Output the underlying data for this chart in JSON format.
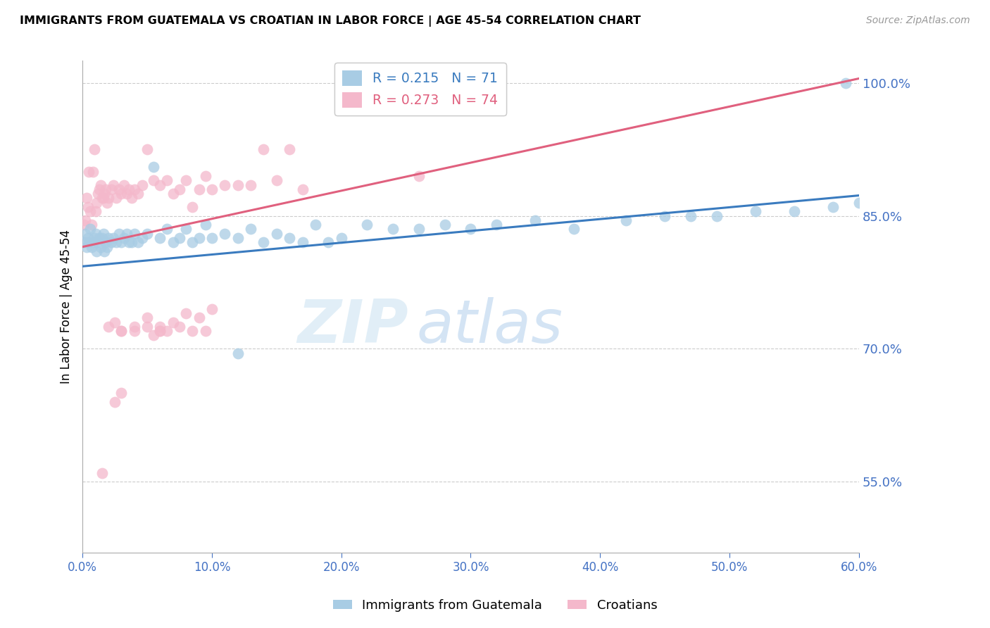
{
  "title": "IMMIGRANTS FROM GUATEMALA VS CROATIAN IN LABOR FORCE | AGE 45-54 CORRELATION CHART",
  "source": "Source: ZipAtlas.com",
  "ylabel": "In Labor Force | Age 45-54",
  "legend_labels": [
    "Immigrants from Guatemala",
    "Croatians"
  ],
  "blue_R": 0.215,
  "blue_N": 71,
  "pink_R": 0.273,
  "pink_N": 74,
  "blue_color": "#a8cce4",
  "pink_color": "#f4b8cb",
  "blue_line_color": "#3a7bbf",
  "pink_line_color": "#e0607e",
  "watermark_zip": "ZIP",
  "watermark_atlas": "atlas",
  "xmin": 0.0,
  "xmax": 0.6,
  "ymin": 0.47,
  "ymax": 1.025,
  "yticks": [
    0.55,
    0.7,
    0.85,
    1.0
  ],
  "xticks": [
    0.0,
    0.1,
    0.2,
    0.3,
    0.4,
    0.5,
    0.6
  ],
  "blue_line_x0": 0.0,
  "blue_line_y0": 0.793,
  "blue_line_x1": 0.6,
  "blue_line_y1": 0.873,
  "pink_line_x0": 0.0,
  "pink_line_y0": 0.815,
  "pink_line_x1": 0.6,
  "pink_line_y1": 1.005,
  "blue_scatter_x": [
    0.001,
    0.002,
    0.003,
    0.004,
    0.005,
    0.006,
    0.007,
    0.008,
    0.009,
    0.01,
    0.011,
    0.012,
    0.013,
    0.014,
    0.015,
    0.016,
    0.017,
    0.018,
    0.019,
    0.02,
    0.022,
    0.024,
    0.026,
    0.028,
    0.03,
    0.032,
    0.034,
    0.036,
    0.038,
    0.04,
    0.043,
    0.046,
    0.05,
    0.055,
    0.06,
    0.065,
    0.07,
    0.075,
    0.08,
    0.085,
    0.09,
    0.095,
    0.1,
    0.11,
    0.12,
    0.13,
    0.14,
    0.15,
    0.16,
    0.17,
    0.18,
    0.19,
    0.2,
    0.22,
    0.24,
    0.26,
    0.28,
    0.3,
    0.32,
    0.35,
    0.38,
    0.42,
    0.45,
    0.47,
    0.49,
    0.52,
    0.55,
    0.58,
    0.6,
    0.12,
    0.59
  ],
  "blue_scatter_y": [
    0.82,
    0.83,
    0.815,
    0.825,
    0.82,
    0.835,
    0.815,
    0.82,
    0.825,
    0.83,
    0.81,
    0.82,
    0.825,
    0.815,
    0.825,
    0.83,
    0.81,
    0.82,
    0.815,
    0.825,
    0.82,
    0.825,
    0.82,
    0.83,
    0.82,
    0.825,
    0.83,
    0.82,
    0.82,
    0.83,
    0.82,
    0.825,
    0.83,
    0.905,
    0.825,
    0.835,
    0.82,
    0.825,
    0.835,
    0.82,
    0.825,
    0.84,
    0.825,
    0.83,
    0.825,
    0.835,
    0.82,
    0.83,
    0.825,
    0.82,
    0.84,
    0.82,
    0.825,
    0.84,
    0.835,
    0.835,
    0.84,
    0.835,
    0.84,
    0.845,
    0.835,
    0.845,
    0.85,
    0.85,
    0.85,
    0.855,
    0.855,
    0.86,
    0.865,
    0.695,
    1.0
  ],
  "pink_scatter_x": [
    0.001,
    0.002,
    0.003,
    0.004,
    0.005,
    0.006,
    0.007,
    0.008,
    0.009,
    0.01,
    0.011,
    0.012,
    0.013,
    0.014,
    0.015,
    0.016,
    0.017,
    0.018,
    0.019,
    0.02,
    0.022,
    0.024,
    0.026,
    0.028,
    0.03,
    0.032,
    0.034,
    0.036,
    0.038,
    0.04,
    0.043,
    0.046,
    0.05,
    0.055,
    0.06,
    0.065,
    0.07,
    0.075,
    0.08,
    0.085,
    0.09,
    0.095,
    0.1,
    0.11,
    0.12,
    0.13,
    0.14,
    0.15,
    0.16,
    0.17,
    0.02,
    0.025,
    0.03,
    0.04,
    0.05,
    0.06,
    0.07,
    0.08,
    0.09,
    0.1,
    0.03,
    0.04,
    0.05,
    0.06,
    0.055,
    0.065,
    0.075,
    0.085,
    0.095,
    0.06,
    0.03,
    0.015,
    0.025,
    0.26
  ],
  "pink_scatter_y": [
    0.84,
    0.845,
    0.87,
    0.86,
    0.9,
    0.855,
    0.84,
    0.9,
    0.925,
    0.855,
    0.865,
    0.875,
    0.88,
    0.885,
    0.87,
    0.87,
    0.875,
    0.88,
    0.865,
    0.87,
    0.88,
    0.885,
    0.87,
    0.88,
    0.875,
    0.885,
    0.875,
    0.88,
    0.87,
    0.88,
    0.875,
    0.885,
    0.925,
    0.89,
    0.885,
    0.89,
    0.875,
    0.88,
    0.89,
    0.86,
    0.88,
    0.895,
    0.88,
    0.885,
    0.885,
    0.885,
    0.925,
    0.89,
    0.925,
    0.88,
    0.725,
    0.73,
    0.72,
    0.725,
    0.735,
    0.725,
    0.73,
    0.74,
    0.735,
    0.745,
    0.72,
    0.72,
    0.725,
    0.72,
    0.715,
    0.72,
    0.725,
    0.72,
    0.72,
    0.72,
    0.65,
    0.56,
    0.64,
    0.895
  ]
}
